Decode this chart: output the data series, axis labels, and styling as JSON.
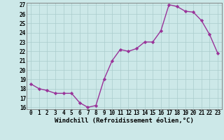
{
  "x": [
    0,
    1,
    2,
    3,
    4,
    5,
    6,
    7,
    8,
    9,
    10,
    11,
    12,
    13,
    14,
    15,
    16,
    17,
    18,
    19,
    20,
    21,
    22,
    23
  ],
  "y": [
    18.5,
    18.0,
    17.8,
    17.5,
    17.5,
    17.5,
    16.5,
    16.0,
    16.2,
    19.0,
    21.0,
    22.2,
    22.0,
    22.3,
    23.0,
    23.0,
    24.2,
    27.0,
    26.8,
    26.3,
    26.2,
    25.3,
    23.8,
    21.8
  ],
  "xlim": [
    -0.5,
    23.5
  ],
  "ylim": [
    15.8,
    27.2
  ],
  "yticks": [
    16,
    17,
    18,
    19,
    20,
    21,
    22,
    23,
    24,
    25,
    26,
    27
  ],
  "xticks": [
    0,
    1,
    2,
    3,
    4,
    5,
    6,
    7,
    8,
    9,
    10,
    11,
    12,
    13,
    14,
    15,
    16,
    17,
    18,
    19,
    20,
    21,
    22,
    23
  ],
  "xtick_labels": [
    "0",
    "1",
    "2",
    "3",
    "4",
    "5",
    "6",
    "7",
    "8",
    "9",
    "10",
    "11",
    "12",
    "13",
    "14",
    "15",
    "16",
    "17",
    "18",
    "19",
    "20",
    "21",
    "22",
    "23"
  ],
  "xlabel": "Windchill (Refroidissement éolien,°C)",
  "line_color": "#993399",
  "marker": "D",
  "marker_size": 2.2,
  "line_width": 1.0,
  "bg_color": "#cce8e8",
  "grid_color": "#aacccc",
  "tick_label_fontsize": 5.5,
  "xlabel_fontsize": 6.5
}
